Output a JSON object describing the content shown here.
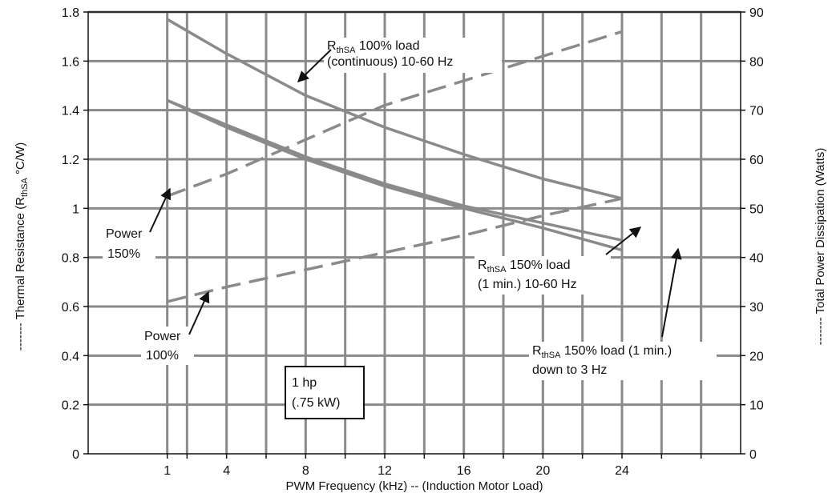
{
  "chart_data": {
    "type": "line",
    "xlabel": "PWM Frequency (kHz) -- (Induction Motor Load)",
    "ylabel_left": "------- Thermal Resistance (R",
    "ylabel_left_sub": "thSA",
    "ylabel_left_tail": " °C/W)",
    "ylabel_right": "------- Total Power Dissipation (Watts)",
    "x_range": [
      -3,
      30
    ],
    "x_ticks": [
      1,
      4,
      8,
      12,
      16,
      20,
      24
    ],
    "x_tick_labels": [
      "1",
      "4",
      "8",
      "12",
      "16",
      "20",
      "24"
    ],
    "x_minor_ticks": [
      2,
      6,
      10,
      14,
      18,
      22,
      26,
      28
    ],
    "y_left_range": [
      0,
      1.8
    ],
    "y_left_ticks": [
      0,
      0.2,
      0.4,
      0.6,
      0.8,
      1,
      1.2,
      1.4,
      1.6,
      1.8
    ],
    "y_left_tick_labels": [
      "0",
      "0.2",
      "0.4",
      "0.6",
      "0.8",
      "1",
      "1.2",
      "1.4",
      "1.6",
      "1.8"
    ],
    "y_right_range": [
      0,
      90
    ],
    "y_right_ticks": [
      0,
      10,
      20,
      30,
      40,
      50,
      60,
      70,
      80,
      90
    ],
    "y_right_tick_labels": [
      "0",
      "10",
      "20",
      "30",
      "40",
      "50",
      "60",
      "70",
      "80",
      "90"
    ],
    "grid": true,
    "series": [
      {
        "axis": "left",
        "style": "solid",
        "x": [
          1,
          4,
          8,
          12,
          16,
          20,
          24
        ],
        "values": [
          1.77,
          1.63,
          1.46,
          1.33,
          1.22,
          1.12,
          1.04
        ]
      },
      {
        "axis": "left",
        "style": "solid",
        "x": [
          1,
          4,
          8,
          12,
          16,
          20,
          24
        ],
        "values": [
          1.44,
          1.34,
          1.21,
          1.1,
          1.01,
          0.94,
          0.87
        ]
      },
      {
        "axis": "left",
        "style": "solid",
        "x": [
          1,
          4,
          8,
          12,
          16,
          20,
          24
        ],
        "values": [
          1.44,
          1.33,
          1.2,
          1.09,
          1.0,
          0.92,
          0.83
        ]
      },
      {
        "axis": "right",
        "style": "dashed",
        "x": [
          1,
          4,
          8,
          12,
          16,
          20,
          24
        ],
        "values": [
          52.5,
          57,
          64,
          71,
          76,
          81,
          86
        ]
      },
      {
        "axis": "right",
        "style": "dashed",
        "x": [
          1,
          4,
          8,
          12,
          16,
          20,
          24
        ],
        "values": [
          31,
          34,
          37.5,
          41,
          44.5,
          48.5,
          52
        ]
      }
    ],
    "annotations": [
      {
        "lines": [
          {
            "main": "R",
            "sub": "thSA",
            "tail": " 100% load"
          },
          {
            "main": "(continuous) 10-60 Hz"
          }
        ]
      },
      {
        "lines": [
          {
            "main": "Power"
          },
          {
            "main": "150%"
          }
        ]
      },
      {
        "lines": [
          {
            "main": "Power"
          },
          {
            "main": "100%"
          }
        ]
      },
      {
        "lines": [
          {
            "main": "R",
            "sub": "thSA",
            "tail": " 150% load"
          },
          {
            "main": "(1 min.) 10-60 Hz"
          }
        ]
      },
      {
        "lines": [
          {
            "main": "R",
            "sub": "thSA",
            "tail": " 150% load (1 min.)"
          },
          {
            "main": "down to 3 Hz"
          }
        ]
      }
    ],
    "note_box": [
      "1 hp",
      "(.75 kW)"
    ]
  },
  "colors": {
    "grid": "#8a8a8a",
    "series": "#8a8a8a",
    "frame": "#111111",
    "text": "#111111"
  }
}
